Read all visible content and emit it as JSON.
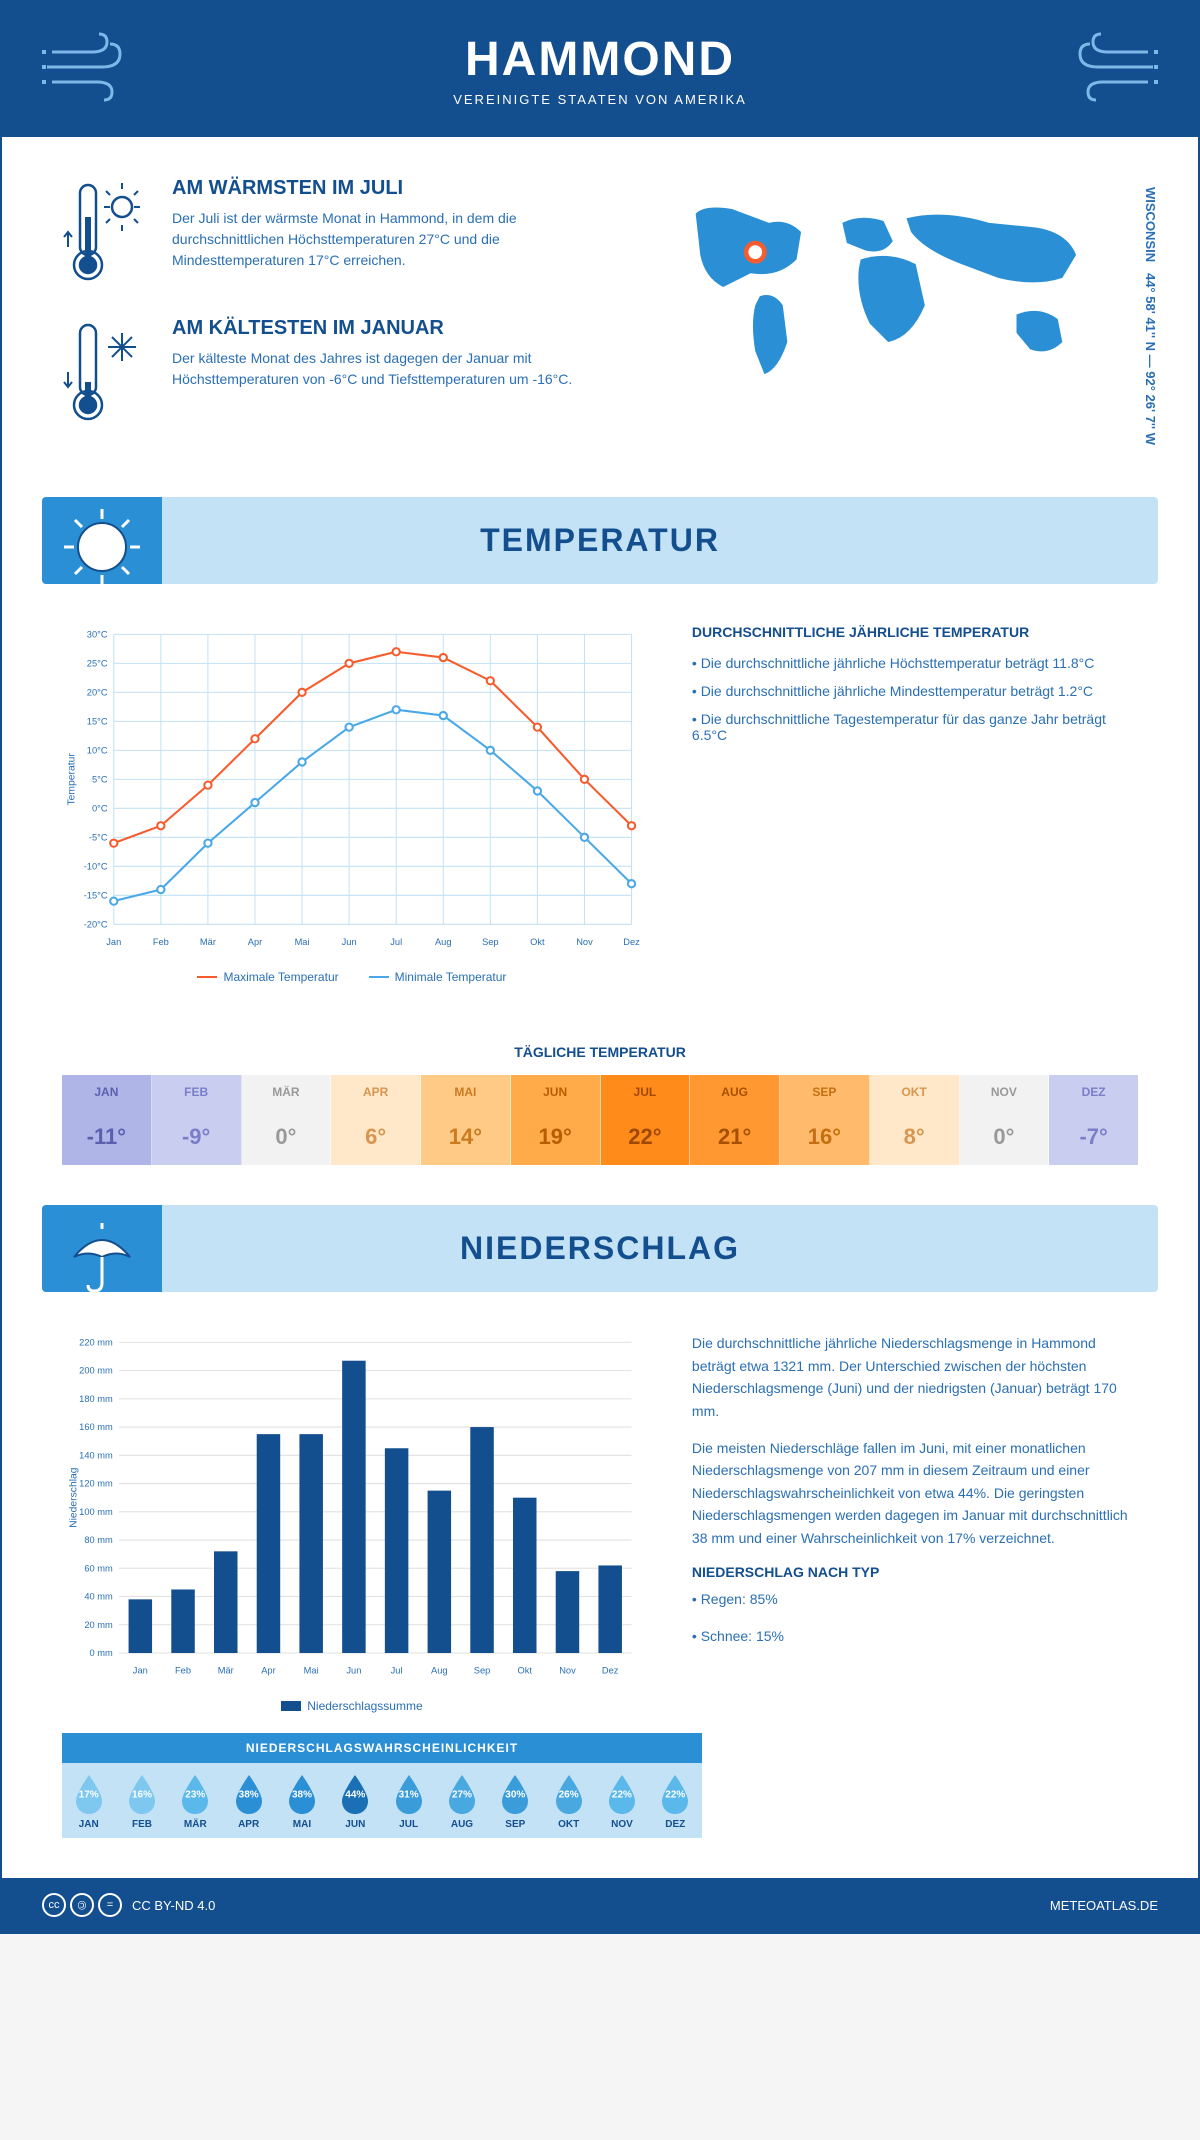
{
  "header": {
    "title": "HAMMOND",
    "subtitle": "VEREINIGTE STAATEN VON AMERIKA"
  },
  "coords_text": "44° 58' 41'' N — 92° 26' 7'' W",
  "coords_region": "WISCONSIN",
  "warmest": {
    "title": "AM WÄRMSTEN IM JULI",
    "text": "Der Juli ist der wärmste Monat in Hammond, in dem die durchschnittlichen Höchsttemperaturen 27°C und die Mindesttemperaturen 17°C erreichen."
  },
  "coldest": {
    "title": "AM KÄLTESTEN IM JANUAR",
    "text": "Der kälteste Monat des Jahres ist dagegen der Januar mit Höchsttemperaturen von -6°C und Tiefsttemperaturen um -16°C."
  },
  "section_temp": "TEMPERATUR",
  "section_precip": "NIEDERSCHLAG",
  "temp_chart": {
    "months": [
      "Jan",
      "Feb",
      "Mär",
      "Apr",
      "Mai",
      "Jun",
      "Jul",
      "Aug",
      "Sep",
      "Okt",
      "Nov",
      "Dez"
    ],
    "max_series": {
      "label": "Maximale Temperatur",
      "color": "#f65c2e",
      "values": [
        -6,
        -3,
        4,
        12,
        20,
        25,
        27,
        26,
        22,
        14,
        5,
        -3
      ]
    },
    "min_series": {
      "label": "Minimale Temperatur",
      "color": "#4aa8e8",
      "values": [
        -16,
        -14,
        -6,
        1,
        8,
        14,
        17,
        16,
        10,
        3,
        -5,
        -13
      ]
    },
    "ylim": [
      -20,
      30
    ],
    "ytick": 5,
    "ylabel": "Temperatur",
    "grid_color": "#c3e2f5"
  },
  "temp_text": {
    "heading": "DURCHSCHNITTLICHE JÄHRLICHE TEMPERATUR",
    "bullets": [
      "• Die durchschnittliche jährliche Höchsttemperatur beträgt 11.8°C",
      "• Die durchschnittliche jährliche Mindesttemperatur beträgt 1.2°C",
      "• Die durchschnittliche Tagestemperatur für das ganze Jahr beträgt 6.5°C"
    ]
  },
  "daily_temp_title": "TÄGLICHE TEMPERATUR",
  "daily_temps": [
    {
      "m": "JAN",
      "v": "-11°",
      "bg": "#b0b5e8",
      "fg": "#5a5fb0"
    },
    {
      "m": "FEB",
      "v": "-9°",
      "bg": "#c9cdf0",
      "fg": "#7a7ec8"
    },
    {
      "m": "MÄR",
      "v": "0°",
      "bg": "#f2f2f2",
      "fg": "#999"
    },
    {
      "m": "APR",
      "v": "6°",
      "bg": "#ffe8c9",
      "fg": "#d89550"
    },
    {
      "m": "MAI",
      "v": "14°",
      "bg": "#ffca85",
      "fg": "#cc7a20"
    },
    {
      "m": "JUN",
      "v": "19°",
      "bg": "#ffab4a",
      "fg": "#b85c00"
    },
    {
      "m": "JUL",
      "v": "22°",
      "bg": "#ff8c1a",
      "fg": "#a04800"
    },
    {
      "m": "AUG",
      "v": "21°",
      "bg": "#ff9830",
      "fg": "#a55000"
    },
    {
      "m": "SEP",
      "v": "16°",
      "bg": "#ffba6b",
      "fg": "#c46f10"
    },
    {
      "m": "OKT",
      "v": "8°",
      "bg": "#ffe8c9",
      "fg": "#d89550"
    },
    {
      "m": "NOV",
      "v": "0°",
      "bg": "#f2f2f2",
      "fg": "#999"
    },
    {
      "m": "DEZ",
      "v": "-7°",
      "bg": "#c9cdf0",
      "fg": "#7a7ec8"
    }
  ],
  "precip_chart": {
    "months": [
      "Jan",
      "Feb",
      "Mär",
      "Apr",
      "Mai",
      "Jun",
      "Jul",
      "Aug",
      "Sep",
      "Okt",
      "Nov",
      "Dez"
    ],
    "values": [
      38,
      45,
      72,
      155,
      155,
      207,
      145,
      115,
      160,
      110,
      58,
      62
    ],
    "ylim": [
      0,
      220
    ],
    "ytick": 20,
    "ylabel": "Niederschlag",
    "bar_color": "#134e8e",
    "legend": "Niederschlagssumme"
  },
  "precip_text": {
    "p1": "Die durchschnittliche jährliche Niederschlagsmenge in Hammond beträgt etwa 1321 mm. Der Unterschied zwischen der höchsten Niederschlagsmenge (Juni) und der niedrigsten (Januar) beträgt 170 mm.",
    "p2": "Die meisten Niederschläge fallen im Juni, mit einer monatlichen Niederschlagsmenge von 207 mm in diesem Zeitraum und einer Niederschlagswahrscheinlichkeit von etwa 44%. Die geringsten Niederschlagsmengen werden dagegen im Januar mit durchschnittlich 38 mm und einer Wahrscheinlichkeit von 17% verzeichnet.",
    "type_heading": "NIEDERSCHLAG NACH TYP",
    "type_rain": "• Regen: 85%",
    "type_snow": "• Schnee: 15%"
  },
  "prob_title": "NIEDERSCHLAGSWAHRSCHEINLICHKEIT",
  "prob": [
    {
      "m": "JAN",
      "p": "17%",
      "c": "#7ec8f0"
    },
    {
      "m": "FEB",
      "p": "16%",
      "c": "#7ec8f0"
    },
    {
      "m": "MÄR",
      "p": "23%",
      "c": "#5ab8ea"
    },
    {
      "m": "APR",
      "p": "38%",
      "c": "#2a8fd4"
    },
    {
      "m": "MAI",
      "p": "38%",
      "c": "#2a8fd4"
    },
    {
      "m": "JUN",
      "p": "44%",
      "c": "#1a6fb5"
    },
    {
      "m": "JUL",
      "p": "31%",
      "c": "#3a9cd8"
    },
    {
      "m": "AUG",
      "p": "27%",
      "c": "#4aa8e0"
    },
    {
      "m": "SEP",
      "p": "30%",
      "c": "#3a9cd8"
    },
    {
      "m": "OKT",
      "p": "26%",
      "c": "#4aa8e0"
    },
    {
      "m": "NOV",
      "p": "22%",
      "c": "#5ab8ea"
    },
    {
      "m": "DEZ",
      "p": "22%",
      "c": "#5ab8ea"
    }
  ],
  "footer": {
    "license": "CC BY-ND 4.0",
    "site": "METEOATLAS.DE"
  }
}
